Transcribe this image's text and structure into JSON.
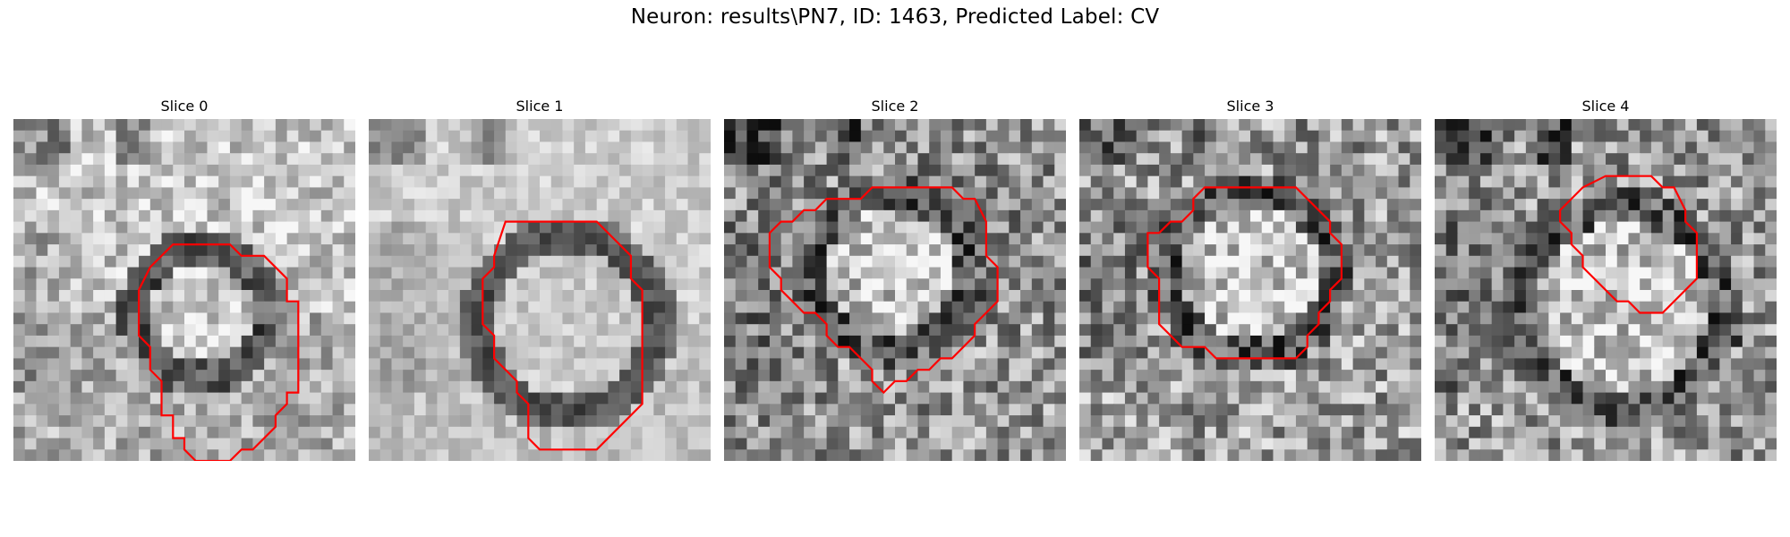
{
  "figure": {
    "title": "Neuron: results\\PN7, ID: 1463, Predicted Label: CV",
    "contour_color": "#ff0000"
  },
  "panels": [
    {
      "title": "Slice 0",
      "contour": [
        [
          14,
          11
        ],
        [
          19,
          11
        ],
        [
          20,
          12
        ],
        [
          22,
          12
        ],
        [
          24,
          14
        ],
        [
          24,
          16
        ],
        [
          25,
          16
        ],
        [
          25,
          24
        ],
        [
          24,
          24
        ],
        [
          24,
          25
        ],
        [
          23,
          26
        ],
        [
          23,
          27
        ],
        [
          21,
          29
        ],
        [
          20,
          29
        ],
        [
          19,
          30
        ],
        [
          16,
          30
        ],
        [
          15,
          29
        ],
        [
          15,
          28
        ],
        [
          14,
          28
        ],
        [
          14,
          26
        ],
        [
          13,
          26
        ],
        [
          13,
          23
        ],
        [
          12,
          22
        ],
        [
          12,
          20
        ],
        [
          11,
          19
        ],
        [
          11,
          15
        ],
        [
          12,
          13
        ]
      ]
    },
    {
      "title": "Slice 1",
      "contour": [
        [
          12,
          9
        ],
        [
          20,
          9
        ],
        [
          23,
          12
        ],
        [
          23,
          14
        ],
        [
          24,
          15
        ],
        [
          24,
          25
        ],
        [
          20,
          29
        ],
        [
          15,
          29
        ],
        [
          14,
          28
        ],
        [
          14,
          25
        ],
        [
          13,
          24
        ],
        [
          13,
          23
        ],
        [
          12,
          22
        ],
        [
          11,
          21
        ],
        [
          11,
          19
        ],
        [
          10,
          18
        ],
        [
          10,
          14
        ],
        [
          11,
          13
        ],
        [
          11,
          12
        ]
      ]
    },
    {
      "title": "Slice 2",
      "contour": [
        [
          13,
          6
        ],
        [
          20,
          6
        ],
        [
          21,
          7
        ],
        [
          22,
          7
        ],
        [
          23,
          9
        ],
        [
          23,
          12
        ],
        [
          24,
          13
        ],
        [
          24,
          16
        ],
        [
          23,
          17
        ],
        [
          22,
          18
        ],
        [
          22,
          19
        ],
        [
          20,
          21
        ],
        [
          19,
          21
        ],
        [
          18,
          22
        ],
        [
          17,
          22
        ],
        [
          16,
          23
        ],
        [
          15,
          23
        ],
        [
          14,
          24
        ],
        [
          13,
          23
        ],
        [
          13,
          22
        ],
        [
          12,
          21
        ],
        [
          11,
          20
        ],
        [
          10,
          20
        ],
        [
          9,
          19
        ],
        [
          9,
          18
        ],
        [
          8,
          17
        ],
        [
          7,
          17
        ],
        [
          6,
          16
        ],
        [
          5,
          15
        ],
        [
          5,
          14
        ],
        [
          4,
          13
        ],
        [
          4,
          10
        ],
        [
          5,
          9
        ],
        [
          6,
          9
        ],
        [
          7,
          8
        ],
        [
          8,
          8
        ],
        [
          9,
          7
        ],
        [
          12,
          7
        ]
      ]
    },
    {
      "title": "Slice 3",
      "contour": [
        [
          11,
          6
        ],
        [
          19,
          6
        ],
        [
          21,
          8
        ],
        [
          22,
          9
        ],
        [
          22,
          10
        ],
        [
          23,
          11
        ],
        [
          23,
          14
        ],
        [
          22,
          15
        ],
        [
          22,
          16
        ],
        [
          21,
          17
        ],
        [
          21,
          18
        ],
        [
          20,
          19
        ],
        [
          20,
          20
        ],
        [
          19,
          21
        ],
        [
          12,
          21
        ],
        [
          11,
          20
        ],
        [
          9,
          20
        ],
        [
          8,
          19
        ],
        [
          7,
          18
        ],
        [
          7,
          14
        ],
        [
          6,
          13
        ],
        [
          6,
          10
        ],
        [
          7,
          10
        ],
        [
          8,
          9
        ],
        [
          9,
          9
        ],
        [
          10,
          8
        ],
        [
          10,
          7
        ]
      ]
    },
    {
      "title": "Slice 4",
      "contour": [
        [
          15,
          5
        ],
        [
          19,
          5
        ],
        [
          20,
          6
        ],
        [
          21,
          6
        ],
        [
          22,
          8
        ],
        [
          22,
          9
        ],
        [
          23,
          10
        ],
        [
          23,
          14
        ],
        [
          20,
          17
        ],
        [
          18,
          17
        ],
        [
          17,
          16
        ],
        [
          16,
          16
        ],
        [
          15,
          15
        ],
        [
          13,
          13
        ],
        [
          13,
          12
        ],
        [
          12,
          11
        ],
        [
          12,
          10
        ],
        [
          11,
          9
        ],
        [
          11,
          8
        ],
        [
          13,
          6
        ]
      ]
    }
  ]
}
